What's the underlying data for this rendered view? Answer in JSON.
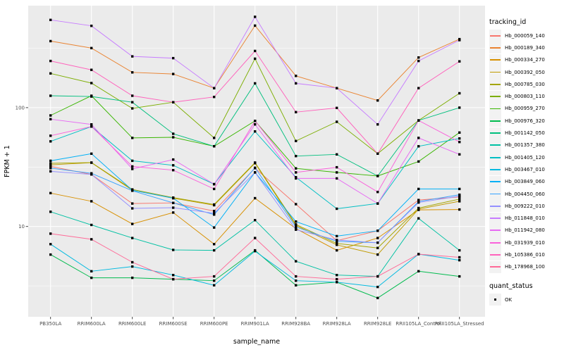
{
  "chart_data": {
    "type": "line",
    "title": "",
    "xlabel": "sample_name",
    "ylabel": "FPKM + 1",
    "y_scale": "log10",
    "y_ticks": [
      100,
      10
    ],
    "y_minor_ticks": [
      316.23,
      31.62,
      3.162
    ],
    "ylim": [
      1.6,
      620
    ],
    "grid": "on",
    "legend_position": "right",
    "panel_bg": "#EBEBEB",
    "grid_color": "#FFFFFF",
    "point_color": "#000000",
    "axis_text_color": "#4D4D4D",
    "tick_mark_color": "#333333",
    "categories": [
      "PB350LA",
      "RRIM600LA",
      "RRIM600LE",
      "RRIM600SE",
      "RRIM600PE",
      "RRIM901LA",
      "RRIM928BA",
      "RRIM928LA",
      "RRIM928LE",
      "RRII105LA_Control",
      "RRII105LA_Stressed"
    ],
    "series": [
      {
        "name": "Hb_000059_140",
        "color": "#F8766D",
        "values": [
          32,
          27.4,
          15.6,
          15.8,
          13.5,
          31,
          15.4,
          7.6,
          9.2,
          16.7,
          17.7
        ]
      },
      {
        "name": "Hb_000189_340",
        "color": "#EA8331",
        "values": [
          363,
          317,
          198,
          192,
          146,
          490,
          185,
          146,
          115,
          264,
          377
        ]
      },
      {
        "name": "Hb_000334_270",
        "color": "#D89000",
        "values": [
          19.1,
          16.3,
          10.5,
          13.1,
          7.1,
          17.3,
          9.6,
          6.3,
          8,
          13.8,
          13.9
        ]
      },
      {
        "name": "Hb_000392_050",
        "color": "#C09B00",
        "values": [
          33,
          34.4,
          20.2,
          17.3,
          15.1,
          34.1,
          10.2,
          7,
          5.8,
          14,
          16.3
        ]
      },
      {
        "name": "Hb_000785_030",
        "color": "#A3A500",
        "values": [
          34,
          34.5,
          20.5,
          17.5,
          15.3,
          34.5,
          10.4,
          7.2,
          6.6,
          14.3,
          17
        ]
      },
      {
        "name": "Hb_000803_110",
        "color": "#7CAE00",
        "values": [
          194,
          161,
          98.5,
          111,
          55.6,
          258,
          52.4,
          76,
          41,
          78,
          132
        ]
      },
      {
        "name": "Hb_000959_270",
        "color": "#39B600",
        "values": [
          86,
          126,
          55.6,
          56.3,
          47.3,
          77.4,
          30.8,
          28.5,
          26.6,
          35.2,
          61.7
        ]
      },
      {
        "name": "Hb_000976_320",
        "color": "#00BB4E",
        "values": [
          5.8,
          3.7,
          3.7,
          3.6,
          3.5,
          6.3,
          3.2,
          3.4,
          2.5,
          4.2,
          3.8
        ]
      },
      {
        "name": "Hb_001142_050",
        "color": "#00BF7D",
        "values": [
          126,
          124,
          111,
          60.3,
          47.3,
          160,
          39.1,
          40.4,
          26.6,
          78,
          100
        ]
      },
      {
        "name": "Hb_001357_380",
        "color": "#00C1A3",
        "values": [
          13.3,
          10.3,
          8,
          6.35,
          6.3,
          11.3,
          5.1,
          3.9,
          3.8,
          11.7,
          6.3
        ]
      },
      {
        "name": "Hb_001405_120",
        "color": "#00BFC4",
        "values": [
          52,
          69.4,
          35.7,
          32.7,
          22.7,
          63.1,
          26,
          14.1,
          15.6,
          47.3,
          55
        ]
      },
      {
        "name": "Hb_003467_010",
        "color": "#00BAE0",
        "values": [
          7.1,
          4.2,
          4.6,
          3.9,
          3.2,
          6.2,
          3.5,
          3.4,
          3.1,
          5.85,
          5.2
        ]
      },
      {
        "name": "Hb_003849_060",
        "color": "#00B0F6",
        "values": [
          35.7,
          41,
          20.2,
          17.3,
          9.8,
          28.5,
          11,
          8.3,
          9.2,
          20.7,
          20.7
        ]
      },
      {
        "name": "Hb_004450_060",
        "color": "#35A2FF",
        "values": [
          31,
          28,
          20,
          15.8,
          12.6,
          31.2,
          9.9,
          7.5,
          7.3,
          16.2,
          18.5
        ]
      },
      {
        "name": "Hb_009222_010",
        "color": "#9590FF",
        "values": [
          29.1,
          27.4,
          14.2,
          14.4,
          12.9,
          28.5,
          9.4,
          7.7,
          7.3,
          15.9,
          18
        ]
      },
      {
        "name": "Hb_011848_010",
        "color": "#C77CFF",
        "values": [
          547,
          488,
          270,
          261,
          146,
          581,
          160,
          146,
          72.3,
          247,
          370
        ]
      },
      {
        "name": "Hb_011942_080",
        "color": "#E76BF3",
        "values": [
          80,
          72.3,
          30.5,
          36.6,
          22.7,
          72.3,
          25.4,
          25.4,
          15.6,
          55.6,
          40.4
        ]
      },
      {
        "name": "Hb_031939_010",
        "color": "#FA62DB",
        "values": [
          58,
          69.4,
          32,
          29.8,
          20.7,
          77.4,
          28.5,
          31.5,
          19.5,
          78,
          51.4
        ]
      },
      {
        "name": "Hb_105386_010",
        "color": "#FF62BC",
        "values": [
          247,
          208,
          126,
          111,
          123,
          300,
          91.6,
          99.5,
          41,
          146,
          245
        ]
      },
      {
        "name": "Hb_178968_100",
        "color": "#FF6A98",
        "values": [
          8.7,
          7.8,
          5,
          3.6,
          3.8,
          8,
          3.8,
          3.6,
          3.8,
          5.85,
          5.5
        ]
      }
    ],
    "legend": {
      "tracking_title": "tracking_id",
      "quant_title": "quant_status",
      "quant_items": [
        {
          "label": "OK",
          "shape": "square",
          "color": "#000000"
        }
      ]
    }
  }
}
